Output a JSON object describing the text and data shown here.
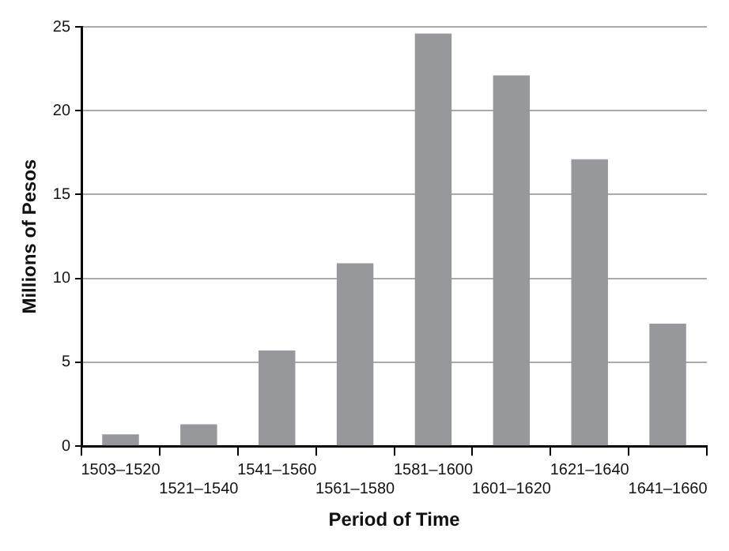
{
  "chart_data": {
    "type": "bar",
    "xlabel": "Period of Time",
    "ylabel": "Millions of Pesos",
    "categories": [
      "1503–1520",
      "1521–1540",
      "1541–1560",
      "1561–1580",
      "1581–1600",
      "1601–1620",
      "1621–1640",
      "1641–1660"
    ],
    "values": [
      0.7,
      1.3,
      5.7,
      10.9,
      24.6,
      22.1,
      17.1,
      7.3
    ],
    "color": "#97989b",
    "ylim": [
      0,
      25
    ],
    "yticks": [
      0,
      5,
      10,
      15,
      20,
      25
    ],
    "grid": "y",
    "legend": false
  }
}
